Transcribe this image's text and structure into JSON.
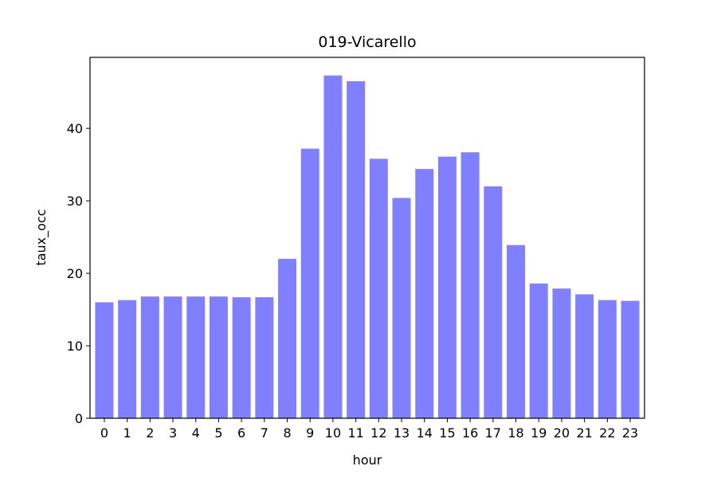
{
  "chart_data": {
    "type": "bar",
    "title": "019-Vicarello",
    "xlabel": "hour",
    "ylabel": "taux_occ",
    "categories": [
      "0",
      "1",
      "2",
      "3",
      "4",
      "5",
      "6",
      "7",
      "8",
      "9",
      "10",
      "11",
      "12",
      "13",
      "14",
      "15",
      "16",
      "17",
      "18",
      "19",
      "20",
      "21",
      "22",
      "23"
    ],
    "values": [
      16.0,
      16.3,
      16.8,
      16.8,
      16.8,
      16.8,
      16.7,
      16.7,
      22.0,
      37.2,
      47.3,
      46.5,
      35.8,
      30.4,
      34.4,
      36.1,
      36.7,
      32.0,
      23.9,
      18.6,
      17.9,
      17.1,
      16.3,
      16.2
    ],
    "yticks": [
      0,
      10,
      20,
      30,
      40
    ],
    "ylim": [
      0,
      49.8
    ],
    "bar_color": "#8080ff",
    "grid": false,
    "legend": "none"
  }
}
